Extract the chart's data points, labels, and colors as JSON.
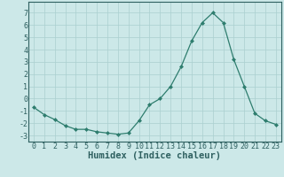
{
  "x": [
    0,
    1,
    2,
    3,
    4,
    5,
    6,
    7,
    8,
    9,
    10,
    11,
    12,
    13,
    14,
    15,
    16,
    17,
    18,
    19,
    20,
    21,
    22,
    23
  ],
  "y": [
    -0.7,
    -1.3,
    -1.7,
    -2.2,
    -2.5,
    -2.5,
    -2.7,
    -2.8,
    -2.9,
    -2.8,
    -1.8,
    -0.5,
    0.0,
    1.0,
    2.6,
    4.7,
    6.2,
    7.0,
    6.2,
    3.2,
    1.0,
    -1.2,
    -1.8,
    -2.1
  ],
  "xlabel": "Humidex (Indice chaleur)",
  "ylim": [
    -3.5,
    7.9
  ],
  "xlim": [
    -0.5,
    23.5
  ],
  "yticks": [
    -3,
    -2,
    -1,
    0,
    1,
    2,
    3,
    4,
    5,
    6,
    7
  ],
  "xticks": [
    0,
    1,
    2,
    3,
    4,
    5,
    6,
    7,
    8,
    9,
    10,
    11,
    12,
    13,
    14,
    15,
    16,
    17,
    18,
    19,
    20,
    21,
    22,
    23
  ],
  "line_color": "#2e7d6e",
  "marker": "D",
  "marker_size": 2.0,
  "bg_color": "#cce8e8",
  "grid_color": "#aacfcf",
  "tick_label_color": "#2e6060",
  "xlabel_color": "#2e6060",
  "xlabel_fontsize": 7.5,
  "tick_fontsize": 6.0
}
